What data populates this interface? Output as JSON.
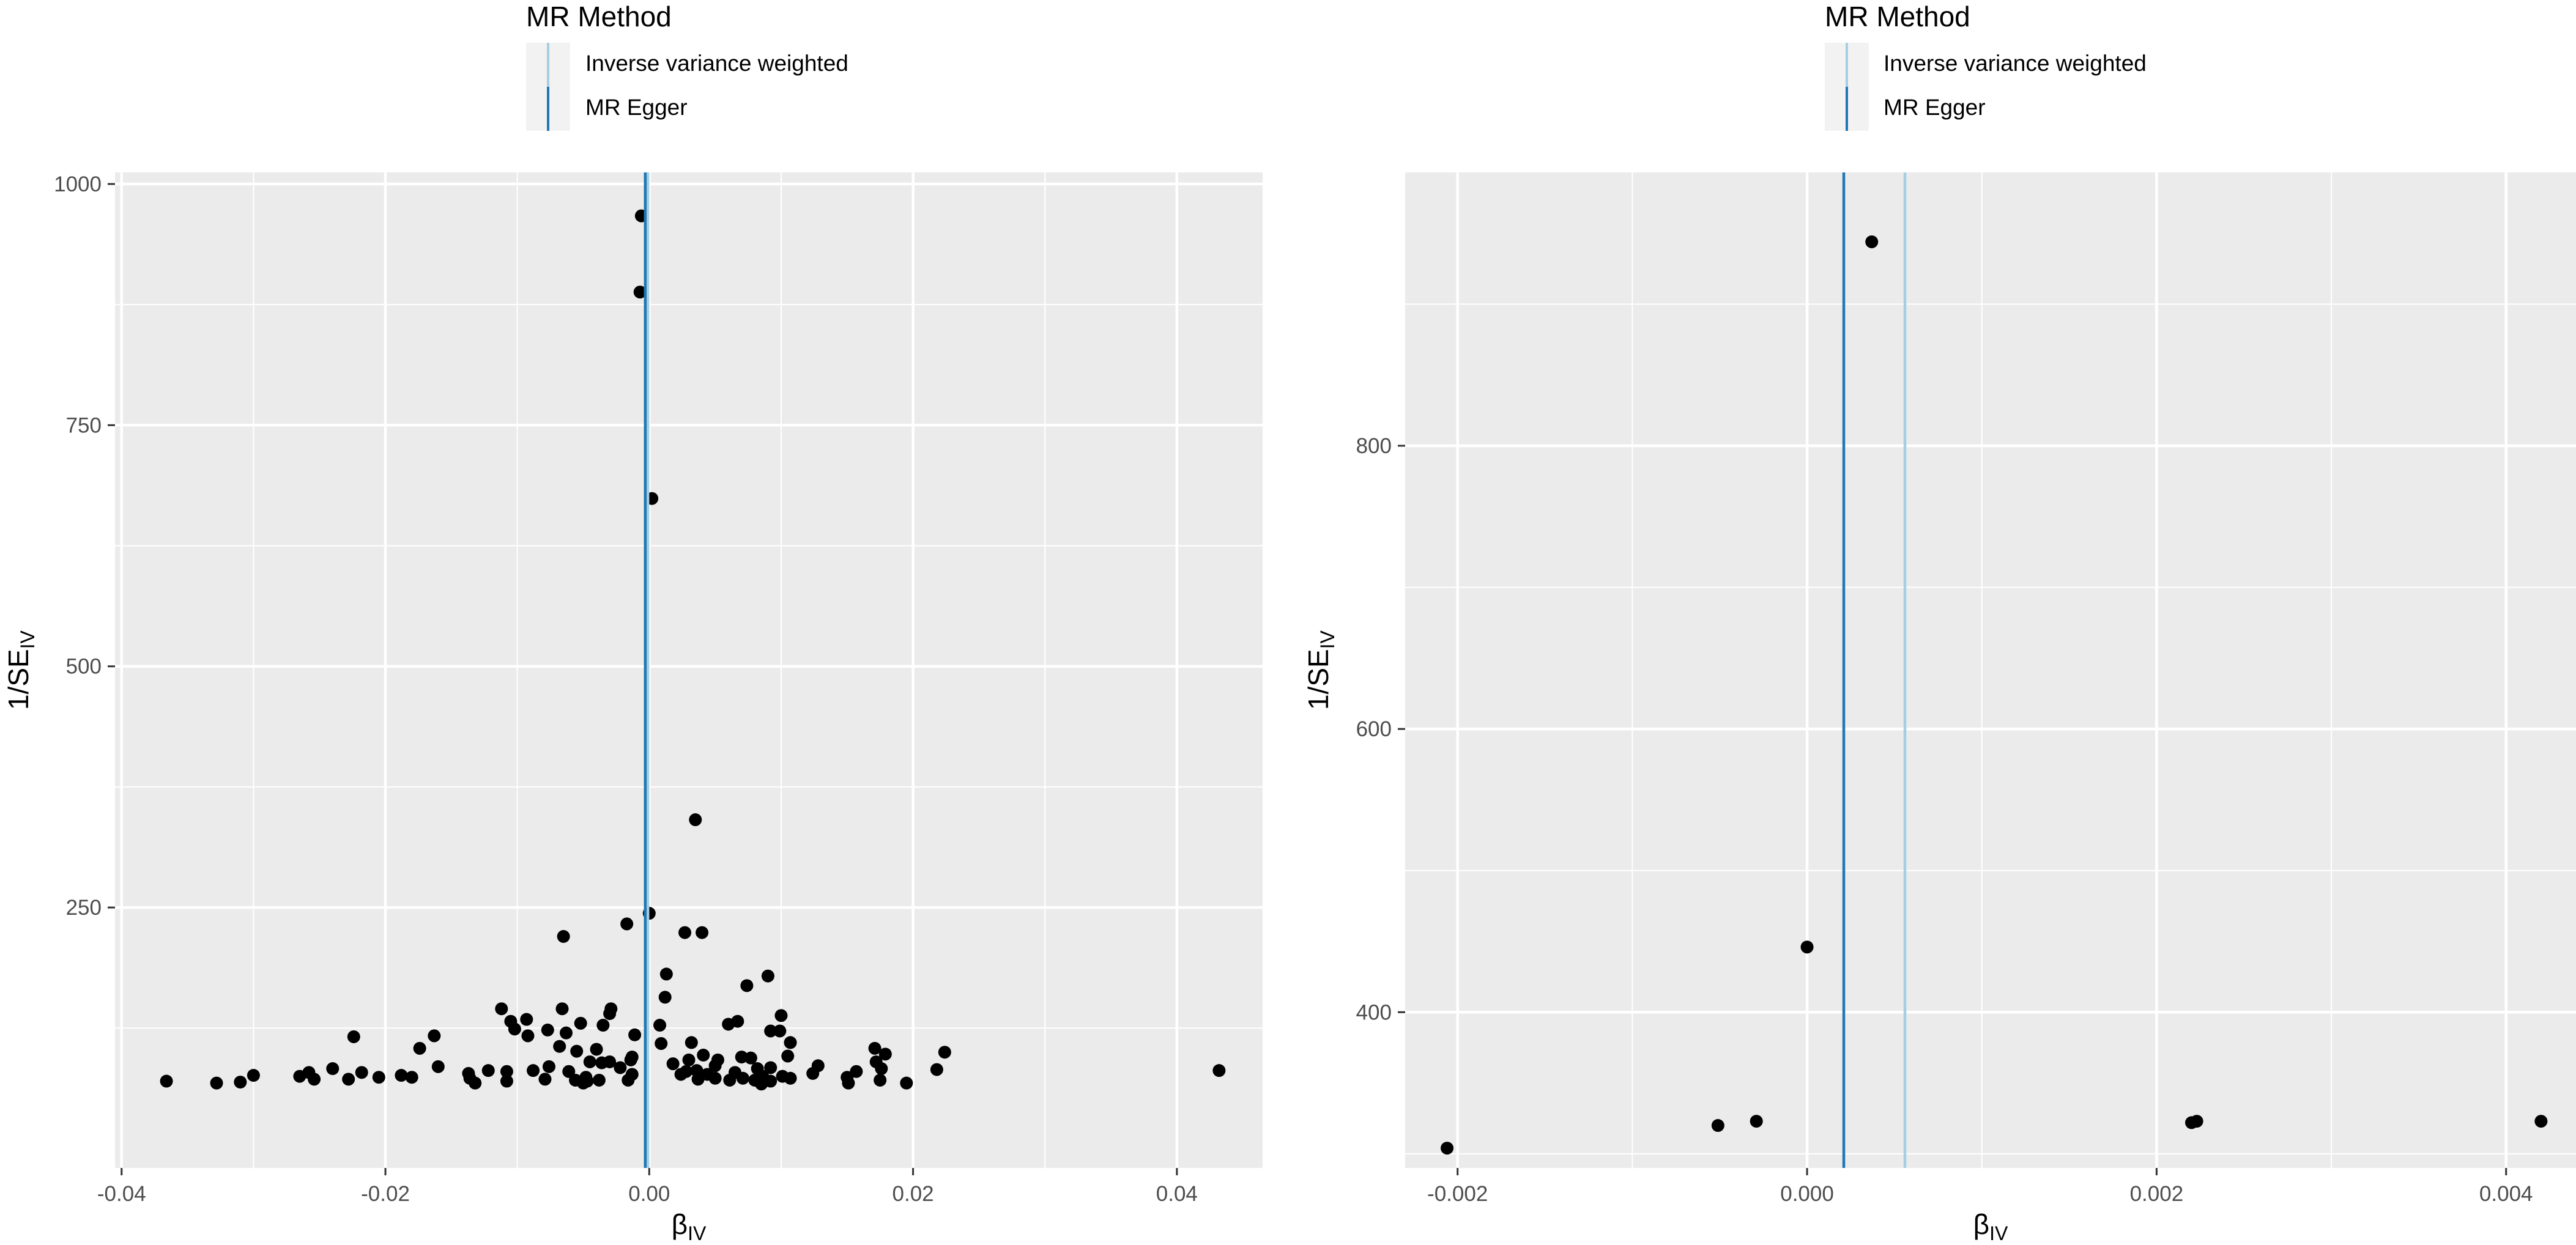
{
  "legend": {
    "title": "MR Method",
    "items": [
      {
        "label": "Inverse variance weighted",
        "color": "#a6cee3"
      },
      {
        "label": "MR Egger",
        "color": "#1f78b4"
      }
    ]
  },
  "colors": {
    "panel_bg": "#ebebeb",
    "grid": "#ffffff",
    "point": "#000000",
    "ivw": "#a6cee3",
    "egger": "#1f78b4",
    "axis_text": "#4d4d4d"
  },
  "chart_data": [
    {
      "type": "scatter",
      "title": "",
      "xlabel": "β",
      "xlabel_sub": "IV",
      "ylabel": "1/SE",
      "ylabel_sub": "IV",
      "xlim": [
        -0.0405,
        0.0465
      ],
      "ylim": [
        -20,
        1012
      ],
      "x_ticks": [
        -0.04,
        -0.02,
        0.0,
        0.02,
        0.04
      ],
      "x_tick_labels": [
        "-0.04",
        "-0.02",
        "0.00",
        "0.02",
        "0.04"
      ],
      "y_ticks": [
        250,
        500,
        750,
        1000
      ],
      "y_tick_labels": [
        "250",
        "500",
        "750",
        "1000"
      ],
      "grid": true,
      "vlines": [
        {
          "method": "Inverse variance weighted",
          "x": -0.0001
        },
        {
          "method": "MR Egger",
          "x": -0.0003
        }
      ],
      "points": [
        [
          -0.0006,
          967
        ],
        [
          -0.0007,
          888
        ],
        [
          0.0002,
          674
        ],
        [
          0.0035,
          341
        ],
        [
          0.0,
          244
        ],
        [
          -0.0017,
          233
        ],
        [
          0.0027,
          224
        ],
        [
          0.004,
          224
        ],
        [
          -0.0065,
          220
        ],
        [
          0.0013,
          181
        ],
        [
          0.009,
          179
        ],
        [
          0.0074,
          169
        ],
        [
          0.0012,
          157
        ],
        [
          -0.0112,
          145
        ],
        [
          -0.0066,
          145
        ],
        [
          -0.0029,
          145
        ],
        [
          -0.003,
          140
        ],
        [
          0.01,
          138
        ],
        [
          -0.0105,
          132
        ],
        [
          -0.0093,
          134
        ],
        [
          0.0067,
          132
        ],
        [
          0.006,
          129
        ],
        [
          0.0008,
          128
        ],
        [
          -0.0052,
          130
        ],
        [
          -0.0035,
          128
        ],
        [
          -0.0102,
          124
        ],
        [
          -0.0077,
          123
        ],
        [
          0.0092,
          122
        ],
        [
          0.0099,
          122
        ],
        [
          -0.0063,
          120
        ],
        [
          -0.0092,
          117
        ],
        [
          -0.0011,
          118
        ],
        [
          -0.0163,
          117
        ],
        [
          -0.0224,
          116
        ],
        [
          0.0009,
          109
        ],
        [
          0.0032,
          110
        ],
        [
          0.0107,
          110
        ],
        [
          -0.0068,
          106
        ],
        [
          -0.004,
          103
        ],
        [
          -0.0055,
          101
        ],
        [
          -0.0174,
          104
        ],
        [
          0.0171,
          104
        ],
        [
          0.0224,
          100
        ],
        [
          0.0179,
          98
        ],
        [
          0.0041,
          97
        ],
        [
          0.0105,
          96
        ],
        [
          0.007,
          95
        ],
        [
          0.0077,
          94
        ],
        [
          -0.0013,
          95
        ],
        [
          -0.0014,
          92
        ],
        [
          0.0052,
          92
        ],
        [
          0.003,
          92
        ],
        [
          -0.003,
          90
        ],
        [
          -0.0036,
          89
        ],
        [
          -0.0045,
          90
        ],
        [
          0.0172,
          90
        ],
        [
          0.0018,
          88
        ],
        [
          0.0128,
          86
        ],
        [
          0.005,
          86
        ],
        [
          -0.0076,
          85
        ],
        [
          -0.0022,
          84
        ],
        [
          -0.024,
          83
        ],
        [
          -0.016,
          85
        ],
        [
          0.0092,
          84
        ],
        [
          0.0082,
          83
        ],
        [
          0.0176,
          83
        ],
        [
          0.0218,
          82
        ],
        [
          -0.0088,
          81
        ],
        [
          -0.0108,
          80
        ],
        [
          -0.0122,
          81
        ],
        [
          0.0036,
          81
        ],
        [
          -0.0061,
          80
        ],
        [
          0.0028,
          80
        ],
        [
          0.0065,
          79
        ],
        [
          0.0157,
          80
        ],
        [
          -0.0218,
          79
        ],
        [
          -0.0258,
          79
        ],
        [
          -0.0137,
          78
        ],
        [
          0.0024,
          77
        ],
        [
          0.0044,
          77
        ],
        [
          0.0124,
          78
        ],
        [
          0.0432,
          81
        ],
        [
          -0.0188,
          76
        ],
        [
          -0.0013,
          77
        ],
        [
          -0.03,
          76
        ],
        [
          0.0101,
          75
        ],
        [
          0.0086,
          75
        ],
        [
          -0.0265,
          75
        ],
        [
          -0.0048,
          74
        ],
        [
          -0.0205,
          74
        ],
        [
          -0.018,
          74
        ],
        [
          -0.0136,
          73
        ],
        [
          0.0107,
          73
        ],
        [
          0.0071,
          73
        ],
        [
          0.005,
          73
        ],
        [
          0.015,
          74
        ],
        [
          -0.0228,
          72
        ],
        [
          -0.0254,
          72
        ],
        [
          0.0037,
          72
        ],
        [
          -0.0079,
          72
        ],
        [
          -0.0056,
          71
        ],
        [
          -0.0038,
          71
        ],
        [
          -0.0016,
          71
        ],
        [
          0.0061,
          71
        ],
        [
          0.008,
          71
        ],
        [
          0.0175,
          71
        ],
        [
          -0.0108,
          70
        ],
        [
          -0.0047,
          70
        ],
        [
          -0.0366,
          70
        ],
        [
          0.0092,
          70
        ],
        [
          -0.031,
          69
        ],
        [
          -0.0328,
          68
        ],
        [
          -0.0132,
          68
        ],
        [
          -0.005,
          68
        ],
        [
          0.0151,
          68
        ],
        [
          0.0195,
          68
        ],
        [
          0.0085,
          67
        ]
      ]
    },
    {
      "type": "scatter",
      "title": "",
      "xlabel": "β",
      "xlabel_sub": "IV",
      "ylabel": "1/SE",
      "ylabel_sub": "IV",
      "xlim": [
        -0.0023,
        0.0044
      ],
      "ylim": [
        290,
        993
      ],
      "x_ticks": [
        -0.002,
        0.0,
        0.002,
        0.004
      ],
      "x_tick_labels": [
        "-0.002",
        "0.000",
        "0.002",
        "0.004"
      ],
      "y_ticks": [
        400,
        600,
        800
      ],
      "y_tick_labels": [
        "400",
        "600",
        "800"
      ],
      "grid": true,
      "vlines": [
        {
          "method": "Inverse variance weighted",
          "x": 0.00056
        },
        {
          "method": "MR Egger",
          "x": 0.00021
        }
      ],
      "points": [
        [
          0.00037,
          944
        ],
        [
          0.0,
          446
        ],
        [
          -0.00206,
          304
        ],
        [
          -0.00051,
          320
        ],
        [
          -0.00029,
          323
        ],
        [
          0.0022,
          322
        ],
        [
          0.00223,
          323
        ],
        [
          0.0042,
          323
        ]
      ]
    }
  ]
}
